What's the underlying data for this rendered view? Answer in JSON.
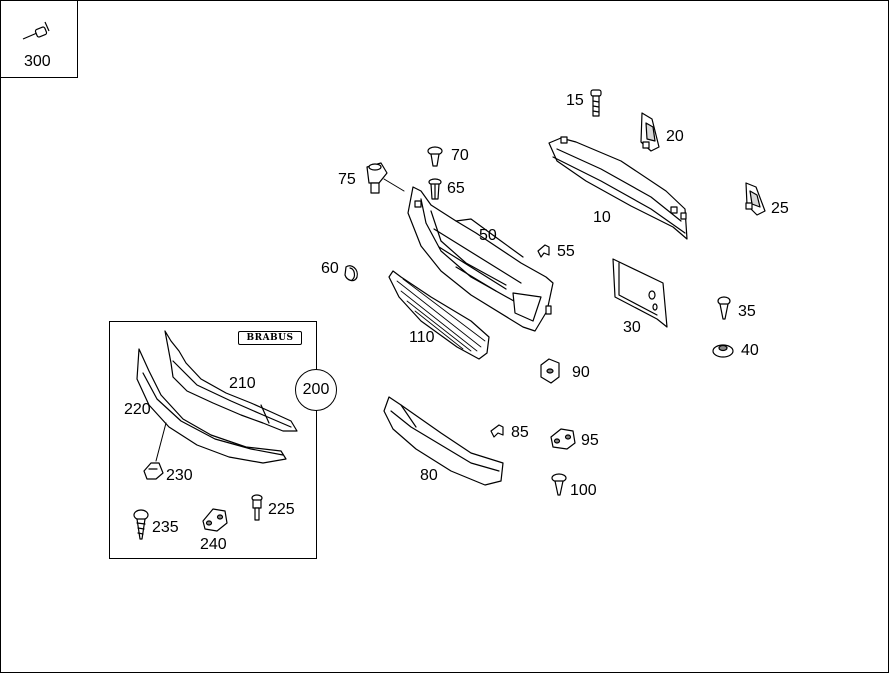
{
  "legend": {
    "part_number": "300"
  },
  "inset": {
    "badge_text": "BRABUS",
    "assembly_number": "200"
  },
  "labels": {
    "p10": "10",
    "p15": "15",
    "p20": "20",
    "p25": "25",
    "p30": "30",
    "p35": "35",
    "p40": "40",
    "p50": "50",
    "p55": "55",
    "p60": "60",
    "p65": "65",
    "p70": "70",
    "p75": "75",
    "p80": "80",
    "p85": "85",
    "p90": "90",
    "p95": "95",
    "p100": "100",
    "p110": "110",
    "p210": "210",
    "p220": "220",
    "p225": "225",
    "p230": "230",
    "p235": "235",
    "p240": "240"
  }
}
